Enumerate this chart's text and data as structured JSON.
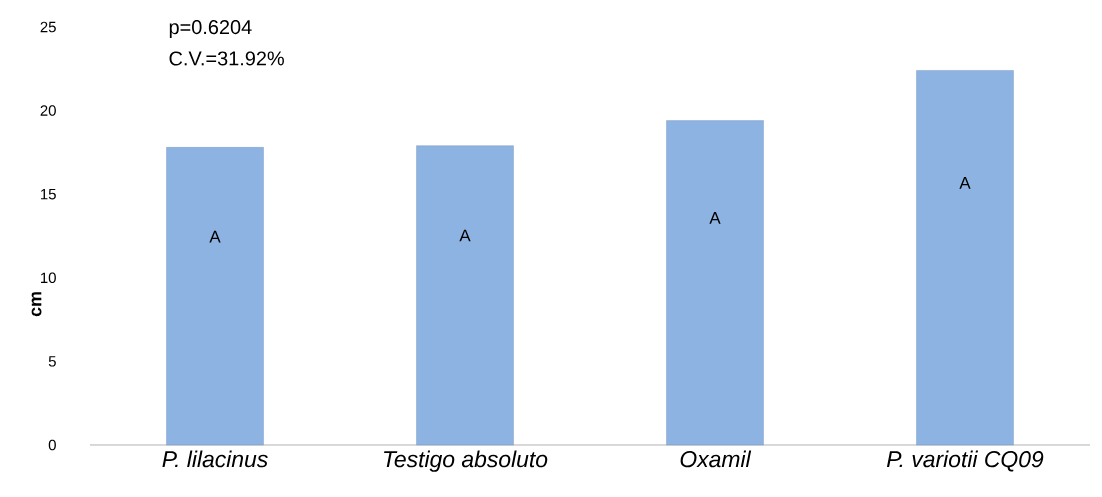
{
  "chart_data": {
    "type": "bar",
    "ylabel": "cm",
    "categories": [
      "P. lilacinus",
      "Testigo absoluto",
      "Oxamil",
      "P. variotii CQ09"
    ],
    "values": [
      17.8,
      17.9,
      19.4,
      22.4
    ],
    "color": "#8db3e2",
    "ylim": [
      0,
      25
    ],
    "yticks": [
      0,
      5,
      10,
      15,
      20,
      25
    ],
    "annotations": [
      "p=0.6204",
      "C.V.=31.92%",
      "A",
      "A",
      "A",
      "A"
    ]
  }
}
